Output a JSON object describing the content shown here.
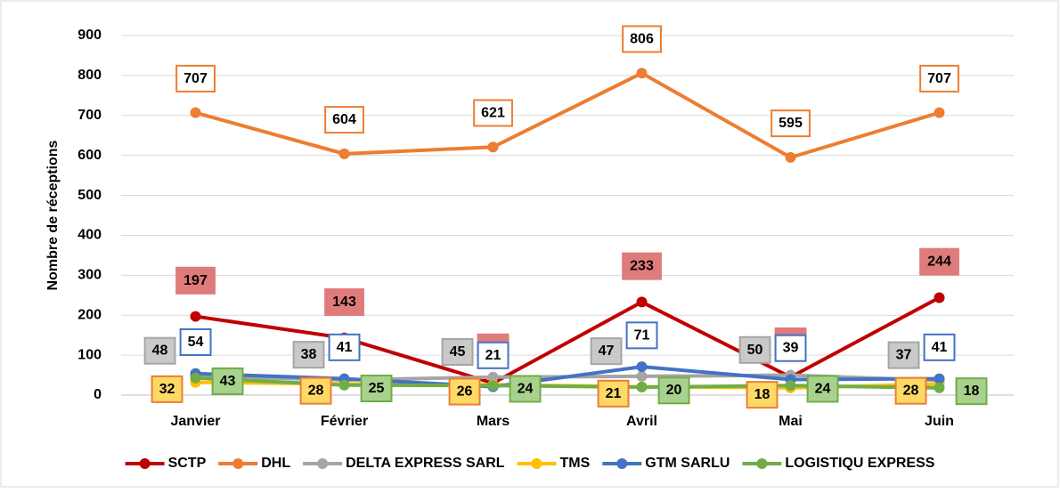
{
  "chart_data": {
    "type": "line",
    "y_label": "Nombre de réceptions",
    "categories": [
      "Janvier",
      "Février",
      "Mars",
      "Avril",
      "Mai",
      "Juin"
    ],
    "series": [
      {
        "name": "SCTP",
        "color": "#c00000",
        "values": [
          197,
          143,
          30,
          233,
          45,
          244
        ]
      },
      {
        "name": "DHL",
        "color": "#ed7d31",
        "values": [
          707,
          604,
          621,
          806,
          595,
          707
        ]
      },
      {
        "name": "DELTA EXPRESS SARL",
        "color": "#a5a5a5",
        "values": [
          48,
          38,
          45,
          47,
          50,
          37
        ]
      },
      {
        "name": "TMS",
        "color": "#ffc000",
        "values": [
          32,
          28,
          26,
          21,
          18,
          28
        ]
      },
      {
        "name": "GTM SARLU",
        "color": "#4472c4",
        "values": [
          54,
          41,
          21,
          71,
          39,
          41
        ]
      },
      {
        "name": "LOGISTIQU EXPRESS",
        "color": "#70ad47",
        "values": [
          43,
          25,
          24,
          20,
          24,
          18
        ]
      }
    ],
    "ylim": [
      0,
      900
    ],
    "yticks": [
      0,
      100,
      200,
      300,
      400,
      500,
      600,
      700,
      800,
      900
    ],
    "grid": true,
    "legend": "bottom"
  }
}
